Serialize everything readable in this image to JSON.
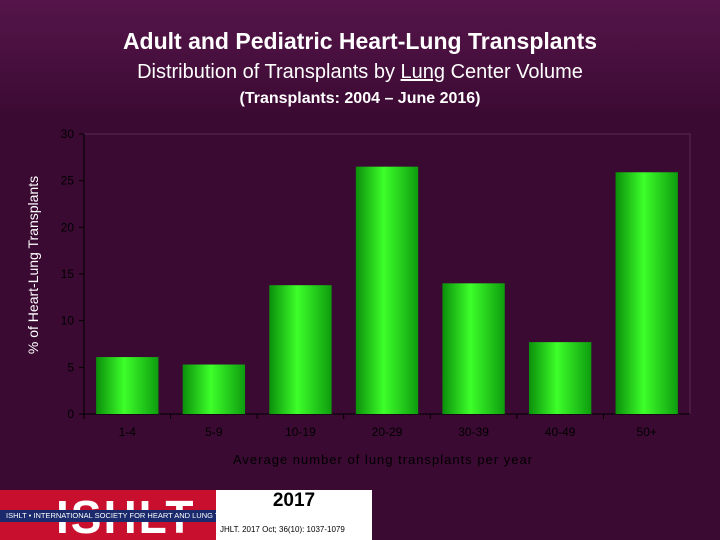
{
  "header": {
    "title": "Adult and Pediatric Heart-Lung Transplants",
    "subtitle_pre": "Distribution of Transplants by ",
    "subtitle_underlined": "Lung",
    "subtitle_post": " Center Volume",
    "period": "(Transplants: 2004 – June 2016)"
  },
  "chart_data": {
    "type": "bar",
    "categories": [
      "1-4",
      "5-9",
      "10-19",
      "20-29",
      "30-39",
      "40-49",
      "50+"
    ],
    "values": [
      6.1,
      5.3,
      13.8,
      26.5,
      14.0,
      7.7,
      25.9
    ],
    "ylim": [
      0,
      30
    ],
    "yticks": [
      0,
      5,
      10,
      15,
      20,
      25,
      30
    ],
    "ylabel": "% of Heart-Lung Transplants",
    "xlabel": "Average number of lung transplants per year",
    "bar_color": "#22e61c",
    "grid": false
  },
  "footer": {
    "logo": "ISHLT",
    "society": "ISHLT • INTERNATIONAL SOCIETY FOR HEART AND LUNG TRANSPLANTATION",
    "year": "2017",
    "citation": "JHLT. 2017 Oct; 36(10): 1037-1079"
  }
}
